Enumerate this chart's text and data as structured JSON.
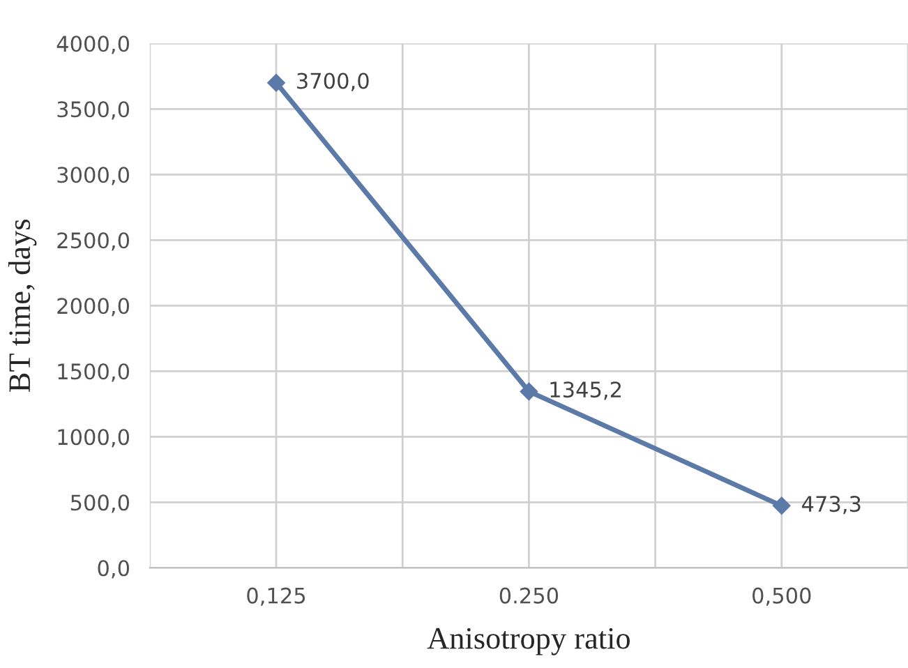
{
  "chart_data": {
    "type": "line",
    "xlabel": "Anisotropy ratio",
    "ylabel": "BT time, days",
    "categories": [
      "0,125",
      "0.250",
      "0,500"
    ],
    "series": [
      {
        "color": "#5b7aa8",
        "values": [
          3700.0,
          1345.2,
          473.3
        ],
        "value_labels": [
          "3700,0",
          "1345,2",
          "473,3"
        ]
      }
    ],
    "ylim": [
      0,
      4000
    ],
    "yticks": [
      {
        "value": 0,
        "label": "0,0"
      },
      {
        "value": 500,
        "label": "500,0"
      },
      {
        "value": 1000,
        "label": "1000,0"
      },
      {
        "value": 1500,
        "label": "1500,0"
      },
      {
        "value": 2000,
        "label": "2000,0"
      },
      {
        "value": 2500,
        "label": "2500,0"
      },
      {
        "value": 3000,
        "label": "3000,0"
      },
      {
        "value": 3500,
        "label": "3500,0"
      },
      {
        "value": 4000,
        "label": "4000,0"
      }
    ],
    "grid": true,
    "marker": "diamond",
    "line_style": "solid"
  }
}
